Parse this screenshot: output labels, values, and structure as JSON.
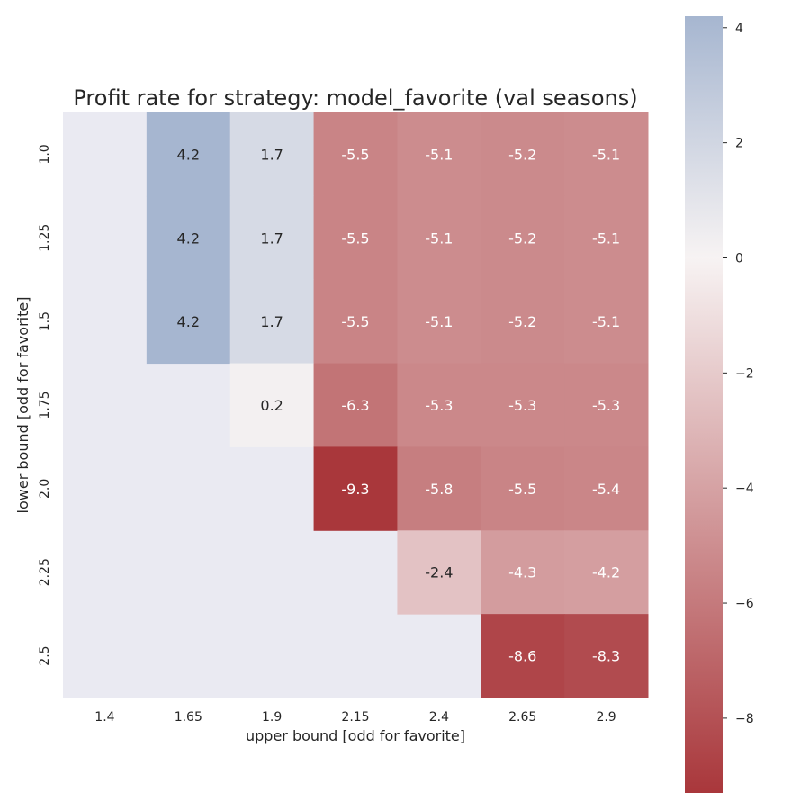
{
  "chart_data": {
    "type": "heatmap",
    "title": "Profit rate for strategy: model_favorite (val seasons)",
    "xlabel": "upper bound [odd for favorite]",
    "ylabel": "lower bound [odd for favorite]",
    "x_categories": [
      "1.4",
      "1.65",
      "1.9",
      "2.15",
      "2.4",
      "2.65",
      "2.9"
    ],
    "y_categories": [
      "1.0",
      "1.25",
      "1.5",
      "1.75",
      "2.0",
      "2.25",
      "2.5"
    ],
    "values": [
      [
        null,
        4.2,
        1.7,
        -5.5,
        -5.1,
        -5.2,
        -5.1
      ],
      [
        null,
        4.2,
        1.7,
        -5.5,
        -5.1,
        -5.2,
        -5.1
      ],
      [
        null,
        4.2,
        1.7,
        -5.5,
        -5.1,
        -5.2,
        -5.1
      ],
      [
        null,
        null,
        0.2,
        -6.3,
        -5.3,
        -5.3,
        -5.3
      ],
      [
        null,
        null,
        null,
        -9.3,
        -5.8,
        -5.5,
        -5.4
      ],
      [
        null,
        null,
        null,
        null,
        -2.4,
        -4.3,
        -4.2
      ],
      [
        null,
        null,
        null,
        null,
        null,
        -8.6,
        -8.3
      ]
    ],
    "colorbar": {
      "vmin": -9.3,
      "vmax": 4.2,
      "center": 0,
      "ticks": [
        4,
        2,
        0,
        -2,
        -4,
        -6,
        -8
      ],
      "tick_labels": [
        "4",
        "2",
        "0",
        "−2",
        "−4",
        "−6",
        "−8"
      ],
      "colormap": "vlag",
      "colors": {
        "negative": "#a9373b",
        "center": "#f7f3f3",
        "positive": "#a6b6d0"
      }
    },
    "background_color": "#eaeaf2",
    "grid": false
  }
}
